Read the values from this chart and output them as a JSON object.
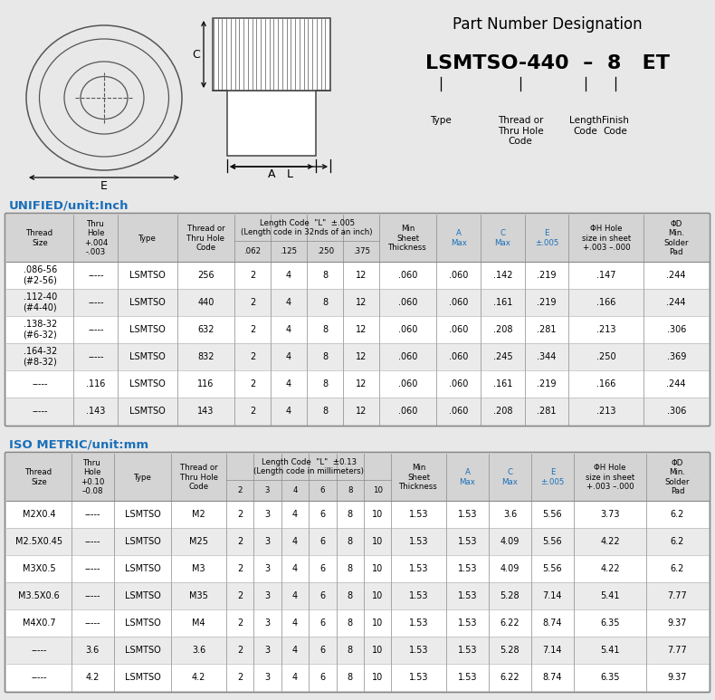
{
  "bg_color": "#e8e8e8",
  "table_bg": "#ffffff",
  "header_bg": "#d4d4d4",
  "alt_row_bg": "#ebebeb",
  "blue_text": "#1a6fba",
  "black_text": "#000000",
  "title_section": "Part Number Designation",
  "part_number_example": "LSMTSO-440  –  8   ET",
  "unified_title": "UNIFIED/unit:Inch",
  "unified_rows": [
    [
      ".086-56\n(#2-56)",
      "-----",
      "LSMTSO",
      "256",
      "2",
      "4",
      "8",
      "12",
      ".060",
      ".060",
      ".142",
      ".219",
      ".147",
      ".244"
    ],
    [
      ".112-40\n(#4-40)",
      "-----",
      "LSMTSO",
      "440",
      "2",
      "4",
      "8",
      "12",
      ".060",
      ".060",
      ".161",
      ".219",
      ".166",
      ".244"
    ],
    [
      ".138-32\n(#6-32)",
      "-----",
      "LSMTSO",
      "632",
      "2",
      "4",
      "8",
      "12",
      ".060",
      ".060",
      ".208",
      ".281",
      ".213",
      ".306"
    ],
    [
      ".164-32\n(#8-32)",
      "-----",
      "LSMTSO",
      "832",
      "2",
      "4",
      "8",
      "12",
      ".060",
      ".060",
      ".245",
      ".344",
      ".250",
      ".369"
    ],
    [
      "-----",
      ".116",
      "LSMTSO",
      "116",
      "2",
      "4",
      "8",
      "12",
      ".060",
      ".060",
      ".161",
      ".219",
      ".166",
      ".244"
    ],
    [
      "-----",
      ".143",
      "LSMTSO",
      "143",
      "2",
      "4",
      "8",
      "12",
      ".060",
      ".060",
      ".208",
      ".281",
      ".213",
      ".306"
    ]
  ],
  "iso_title": "ISO METRIC/unit:mm",
  "iso_rows": [
    [
      "M2X0.4",
      "-----",
      "LSMTSO",
      "M2",
      "2",
      "3",
      "4",
      "6",
      "8",
      "10",
      "1.53",
      "1.53",
      "3.6",
      "5.56",
      "3.73",
      "6.2"
    ],
    [
      "M2.5X0.45",
      "-----",
      "LSMTSO",
      "M25",
      "2",
      "3",
      "4",
      "6",
      "8",
      "10",
      "1.53",
      "1.53",
      "4.09",
      "5.56",
      "4.22",
      "6.2"
    ],
    [
      "M3X0.5",
      "-----",
      "LSMTSO",
      "M3",
      "2",
      "3",
      "4",
      "6",
      "8",
      "10",
      "1.53",
      "1.53",
      "4.09",
      "5.56",
      "4.22",
      "6.2"
    ],
    [
      "M3.5X0.6",
      "-----",
      "LSMTSO",
      "M35",
      "2",
      "3",
      "4",
      "6",
      "8",
      "10",
      "1.53",
      "1.53",
      "5.28",
      "7.14",
      "5.41",
      "7.77"
    ],
    [
      "M4X0.7",
      "-----",
      "LSMTSO",
      "M4",
      "2",
      "3",
      "4",
      "6",
      "8",
      "10",
      "1.53",
      "1.53",
      "6.22",
      "8.74",
      "6.35",
      "9.37"
    ],
    [
      "-----",
      "3.6",
      "LSMTSO",
      "3.6",
      "2",
      "3",
      "4",
      "6",
      "8",
      "10",
      "1.53",
      "1.53",
      "5.28",
      "7.14",
      "5.41",
      "7.77"
    ],
    [
      "-----",
      "4.2",
      "LSMTSO",
      "4.2",
      "2",
      "3",
      "4",
      "6",
      "8",
      "10",
      "1.53",
      "1.53",
      "6.22",
      "8.74",
      "6.35",
      "9.37"
    ]
  ]
}
